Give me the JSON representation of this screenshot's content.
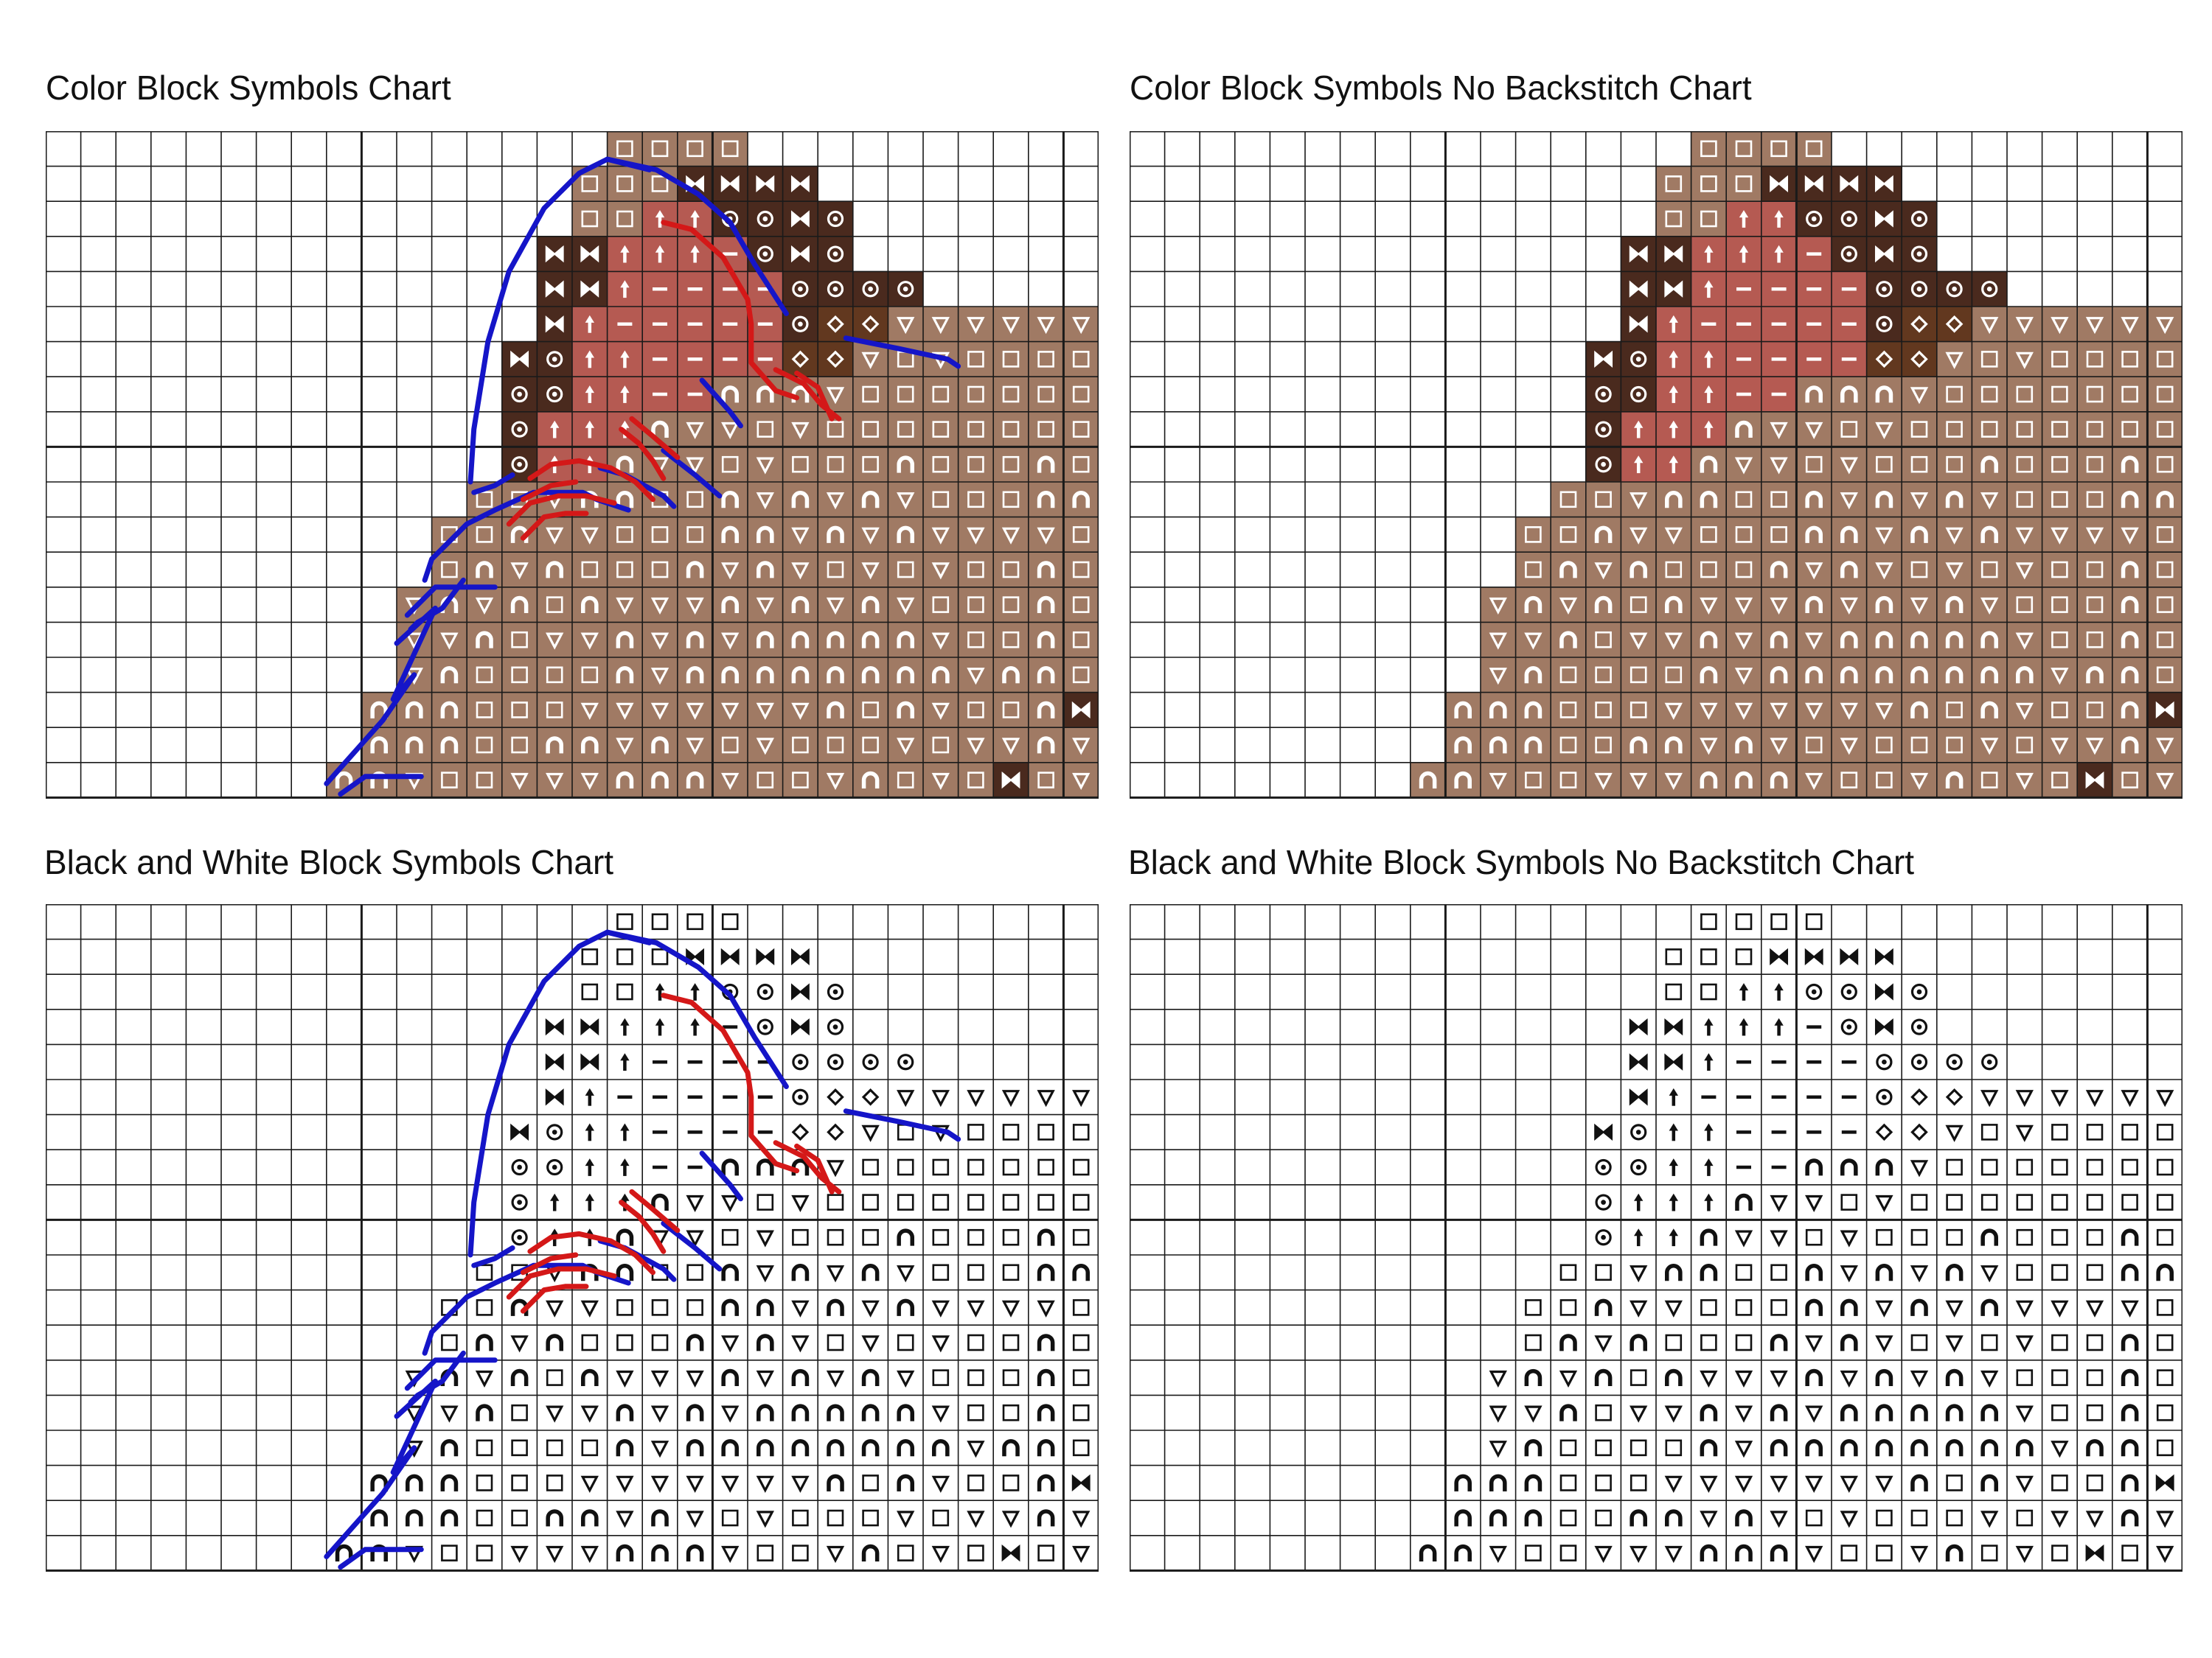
{
  "panels": [
    {
      "title": "Color Block Symbols Chart",
      "mode": "color",
      "backstitch": true
    },
    {
      "title": "Color Block Symbols No Backstitch Chart",
      "mode": "color",
      "backstitch": false
    },
    {
      "title": "Black and White Block Symbols Chart",
      "mode": "bw",
      "backstitch": true
    },
    {
      "title": "Black and White Block Symbols No Backstitch Chart",
      "mode": "bw",
      "backstitch": false
    }
  ],
  "colors": {
    "background": "#ffffff",
    "gridline": "#1a1a1a",
    "light_brown": "#a07a64",
    "dark_brown": "#4a2a1e",
    "medium_brown": "#62381f",
    "rose": "#b55a52",
    "backstitch_blue": "#1515c8",
    "backstitch_red": "#d41818"
  },
  "symbol_legend": {
    "S": "square-symbol",
    "A": "arch-symbol",
    "V": "triangle-down-symbol",
    "B": "bowtie-symbol",
    "U": "arrow-up-symbol",
    "M": "dash-symbol",
    "O": "dot-circle-symbol",
    "D": "diamond-symbol"
  },
  "pattern_rows": [
    "..................SSSS..........",
    ".................SSSBBBB........",
    ".................SSUUOOBO.......",
    "................BBUUUMOBO.......",
    "................BBUMMMMOOOO.....",
    "................BUMMMMMODDVVVVVV",
    "...............BOUUMMMMDDVSVSSSS",
    "...............OOUUMMAAAVSSSSSSS",
    "...............OUUUAVVSVSSSSSSSS",
    "...............OUUAVVSVSSSASSSAS",
    "..............SSVAASSAVAVAVSSSAA",
    ".............SSAVVSSSAAVAVAVVVVS",
    ".............SAVASSSAVAVSVSVSSAS",
    "............VAVASAVVVAVAVAVSSSAS",
    "............VVASVVAVAVAAAAAVSSAS",
    "............VASSSSAVAAAAAAAAVAAS",
    "...........AAASSSVVVVVVVASAVSSAB",
    "...........AAASSAAVAVSVSSSVSVVAV",
    "..........AAVSSVVVAAAVSSVASVSBSV"
  ]
}
